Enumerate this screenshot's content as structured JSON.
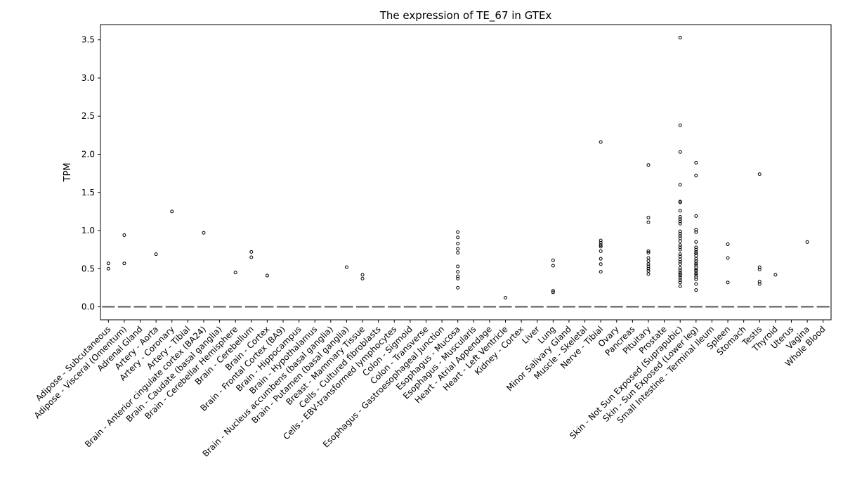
{
  "chart_data": {
    "type": "box",
    "title": "The expression of TE_67 in GTEx",
    "xlabel": "",
    "ylabel": "TPM",
    "ylim": [
      -0.17,
      3.7
    ],
    "yticks": [
      0.0,
      0.5,
      1.0,
      1.5,
      2.0,
      2.5,
      3.0,
      3.5
    ],
    "ytick_labels": [
      "0.0",
      "0.5",
      "1.0",
      "1.5",
      "2.0",
      "2.5",
      "3.0",
      "3.5"
    ],
    "grid": false,
    "categories": [
      "Adipose - Subcutaneous",
      "Adipose - Visceral (Omentum)",
      "Adrenal Gland",
      "Artery - Aorta",
      "Artery - Coronary",
      "Artery - Tibial",
      "Brain - Anterior cingulate cortex (BA24)",
      "Brain - Caudate (basal ganglia)",
      "Brain - Cerebellar Hemisphere",
      "Brain - Cerebellum",
      "Brain - Cortex",
      "Brain - Frontal Cortex (BA9)",
      "Brain - Hippocampus",
      "Brain - Hypothalamus",
      "Brain - Nucleus accumbens (basal ganglia)",
      "Brain - Putamen (basal ganglia)",
      "Breast - Mammary Tissue",
      "Cells - Cultured fibroblasts",
      "Cells - EBV-transformed lymphocytes",
      "Colon - Sigmoid",
      "Colon - Transverse",
      "Esophagus - Gastroesophageal Junction",
      "Esophagus - Mucosa",
      "Esophagus - Muscularis",
      "Heart - Atrial Appendage",
      "Heart - Left Ventricle",
      "Kidney - Cortex",
      "Liver",
      "Lung",
      "Minor Salivary Gland",
      "Muscle - Skeletal",
      "Nerve - Tibial",
      "Ovary",
      "Pancreas",
      "Pituitary",
      "Prostate",
      "Skin - Not Sun Exposed (Suprapubic)",
      "Skin - Sun Exposed (Lower leg)",
      "Small Intestine - Terminal Ileum",
      "Spleen",
      "Stomach",
      "Testis",
      "Thyroid",
      "Uterus",
      "Vagina",
      "Whole Blood"
    ],
    "medians": [
      0,
      0,
      0,
      0,
      0,
      0,
      0,
      0,
      0,
      0,
      0,
      0,
      0,
      0,
      0,
      0,
      0,
      0,
      0,
      0,
      0,
      0,
      0,
      0,
      0,
      0,
      0,
      0,
      0,
      0,
      0,
      0,
      0,
      0,
      0,
      0,
      0,
      0,
      0,
      0,
      0,
      0,
      0,
      0,
      0,
      0
    ],
    "outliers": [
      [
        0.57,
        0.5
      ],
      [
        0.94,
        0.57
      ],
      [],
      [
        0.69
      ],
      [
        1.25
      ],
      [],
      [
        0.97
      ],
      [],
      [
        0.45
      ],
      [
        0.72,
        0.65
      ],
      [
        0.41
      ],
      [],
      [],
      [],
      [],
      [
        0.52
      ],
      [
        0.42,
        0.37
      ],
      [],
      [],
      [],
      [],
      [],
      [
        0.98,
        0.91,
        0.83,
        0.76,
        0.71,
        0.53,
        0.46,
        0.4,
        0.37,
        0.25
      ],
      [],
      [],
      [
        0.12
      ],
      [],
      [],
      [
        0.61,
        0.54,
        0.21,
        0.19
      ],
      [],
      [],
      [
        2.16,
        0.87,
        0.84,
        0.81,
        0.79,
        0.73,
        0.63,
        0.56,
        0.46
      ],
      [],
      [],
      [
        1.86,
        1.17,
        1.11,
        0.73,
        0.71,
        0.64,
        0.6,
        0.56,
        0.53,
        0.5,
        0.47,
        0.43
      ],
      [],
      [
        3.53,
        2.38,
        2.03,
        1.6,
        1.38,
        1.37,
        1.26,
        1.18,
        1.15,
        1.12,
        1.09,
        0.99,
        0.96,
        0.93,
        0.9,
        0.86,
        0.81,
        0.78,
        0.75,
        0.69,
        0.66,
        0.62,
        0.59,
        0.56,
        0.51,
        0.48,
        0.45,
        0.43,
        0.41,
        0.38,
        0.35,
        0.32,
        0.27
      ],
      [
        1.89,
        1.72,
        1.19,
        1.01,
        0.98,
        0.85,
        0.78,
        0.75,
        0.72,
        0.7,
        0.67,
        0.63,
        0.6,
        0.57,
        0.55,
        0.52,
        0.49,
        0.47,
        0.44,
        0.42,
        0.39,
        0.36,
        0.3,
        0.22
      ],
      [],
      [
        0.82,
        0.64,
        0.32
      ],
      [],
      [
        1.74,
        0.52,
        0.49,
        0.33,
        0.3
      ],
      [
        0.42
      ],
      [],
      [
        0.85
      ],
      []
    ]
  }
}
